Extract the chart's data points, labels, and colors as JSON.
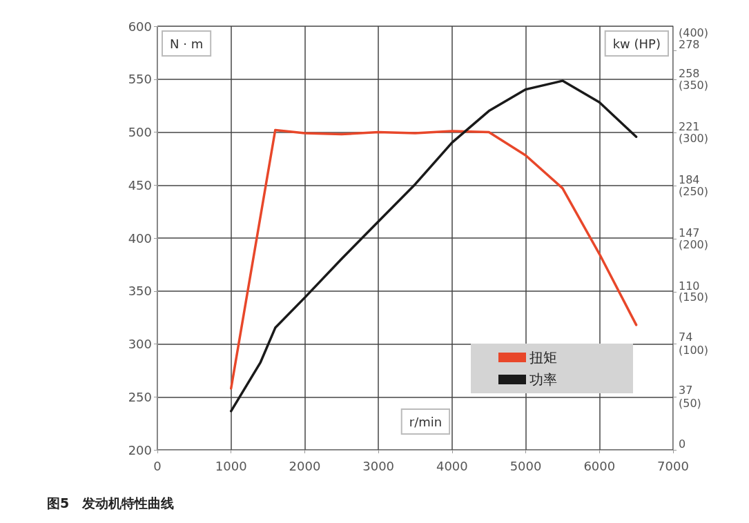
{
  "chart_data": {
    "type": "line",
    "title": "图5　发动机特性曲线",
    "xlabel": "r/min",
    "ylabel": "N · m",
    "y2label": "kw (HP)",
    "xlim": [
      0,
      7000
    ],
    "xticks": [
      0,
      1000,
      2000,
      3000,
      4000,
      5000,
      6000,
      7000
    ],
    "ylim": [
      200,
      600
    ],
    "yticks": [
      200,
      250,
      300,
      350,
      400,
      450,
      500,
      550,
      600
    ],
    "y2lim": [
      0,
      295
    ],
    "y2ticks": [
      0,
      37,
      74,
      110,
      147,
      184,
      221,
      258,
      278
    ],
    "y3lim": [
      0,
      400
    ],
    "y3ticks": [
      {
        "value": 50,
        "label": "(50)"
      },
      {
        "value": 100,
        "label": "(100)"
      },
      {
        "value": 150,
        "label": "(150)"
      },
      {
        "value": 200,
        "label": "(200)"
      },
      {
        "value": 250,
        "label": "(250)"
      },
      {
        "value": 300,
        "label": "(300)"
      },
      {
        "value": 350,
        "label": "(350)"
      },
      {
        "value": 400,
        "label": "(400)"
      }
    ],
    "grid": true,
    "legend": "bottom right",
    "marker": "none",
    "series": [
      {
        "name": "扭矩",
        "color": "#e8472a",
        "x": [
          1000,
          1600,
          2000,
          2500,
          3000,
          3500,
          4000,
          4500,
          5000,
          5500,
          6000,
          6500
        ],
        "values": [
          258,
          502,
          499,
          498,
          500,
          499,
          501,
          500,
          478,
          447,
          385,
          318
        ]
      },
      {
        "name": "功率",
        "color": "#1a1a1a",
        "axis": "y2",
        "x": [
          1000,
          1400,
          1600,
          2000,
          2500,
          3000,
          3500,
          4000,
          4500,
          5000,
          5500,
          6000,
          6500
        ],
        "values": [
          27,
          61,
          85,
          106,
          133,
          159,
          185,
          214,
          236,
          251,
          257,
          242,
          218
        ]
      }
    ]
  }
}
